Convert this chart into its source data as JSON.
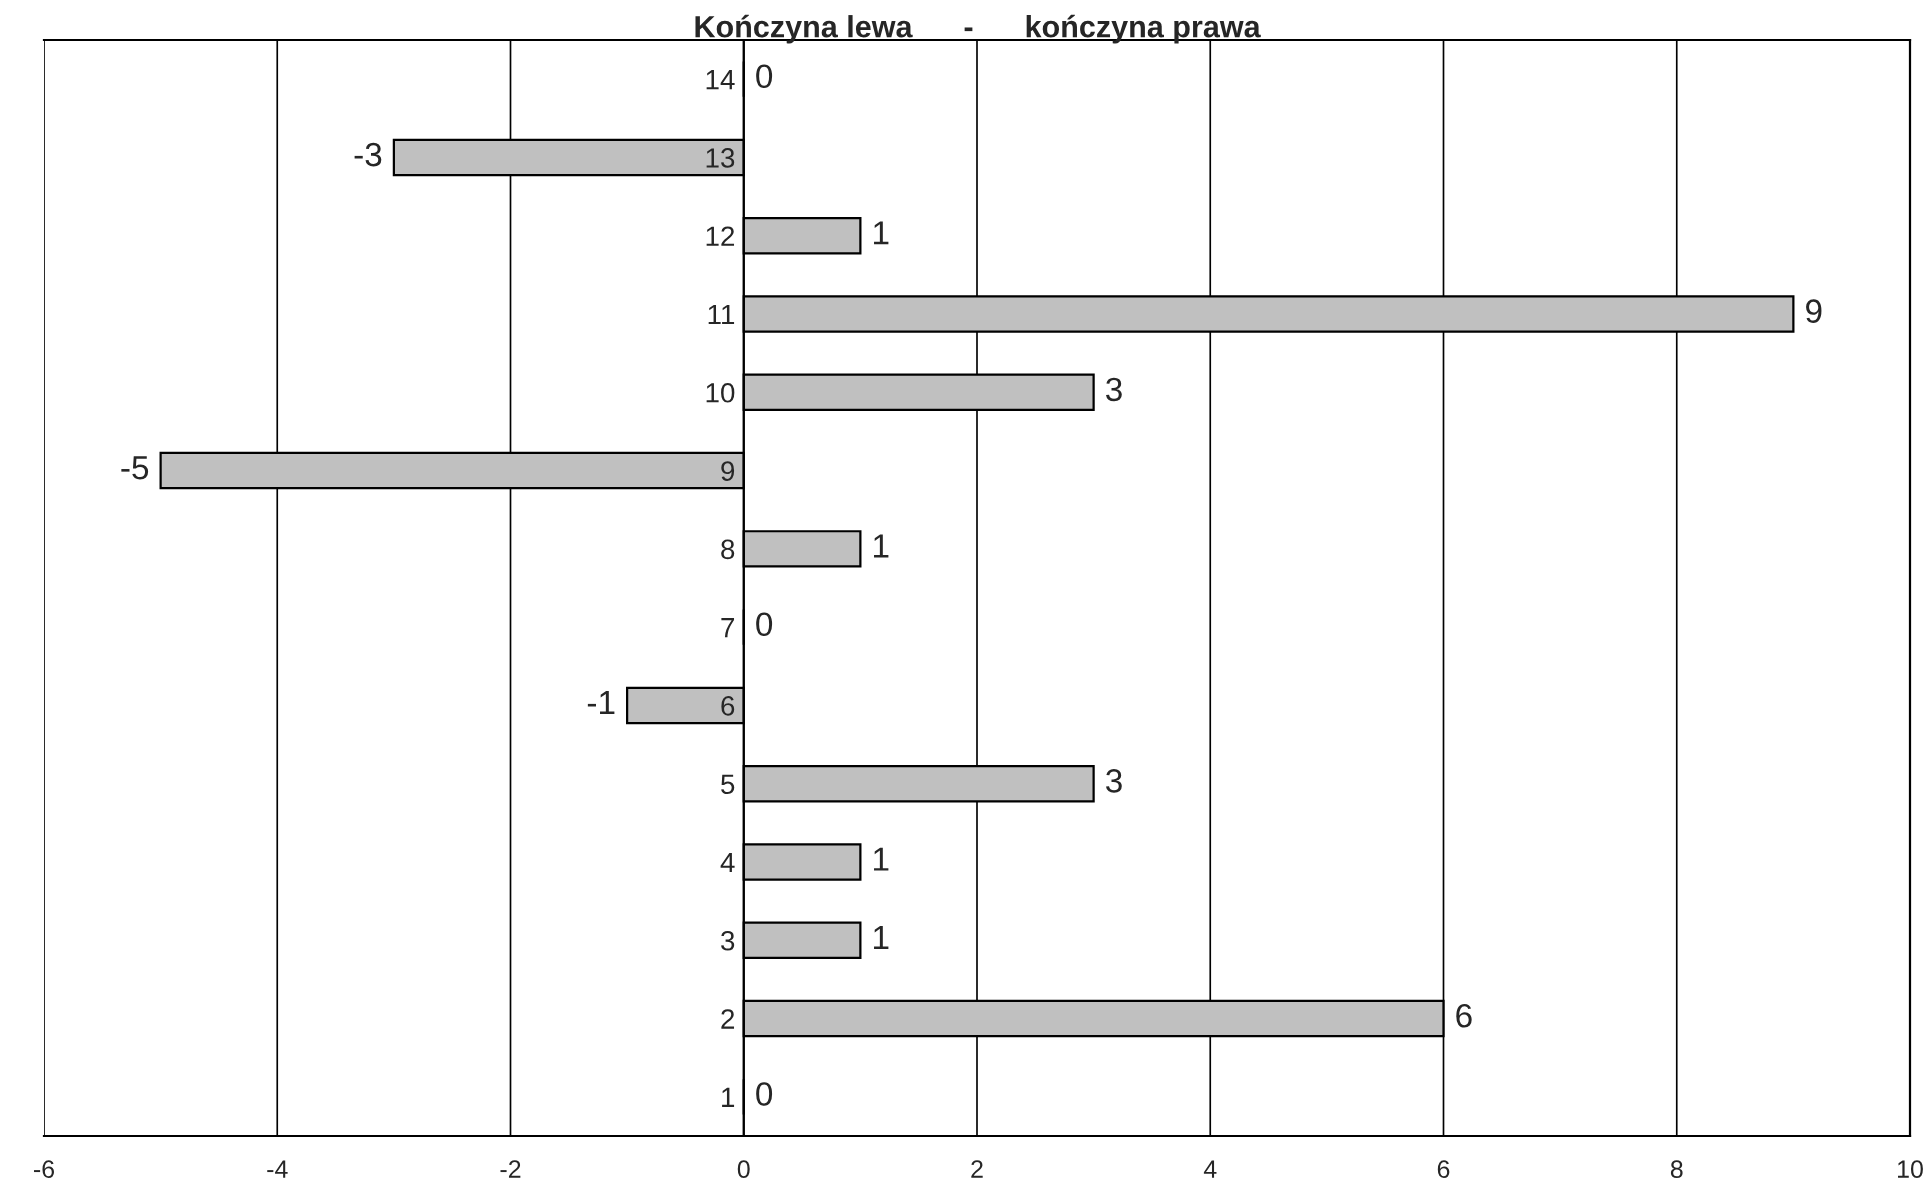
{
  "chart_data": {
    "type": "bar",
    "orientation": "horizontal",
    "title": "Kończyna lewa      -      kończyna prawa",
    "categories": [
      "14",
      "13",
      "12",
      "11",
      "10",
      "9",
      "8",
      "7",
      "6",
      "5",
      "4",
      "3",
      "2",
      "1"
    ],
    "values": [
      0,
      -3,
      1,
      9,
      3,
      -5,
      1,
      0,
      -1,
      3,
      1,
      1,
      6,
      0
    ],
    "color": "#c0c0c0",
    "xlim": [
      -6,
      10
    ],
    "xticks": [
      -6,
      -4,
      -2,
      0,
      2,
      4,
      6,
      8,
      10
    ],
    "grid": "x",
    "data_labels": true
  }
}
